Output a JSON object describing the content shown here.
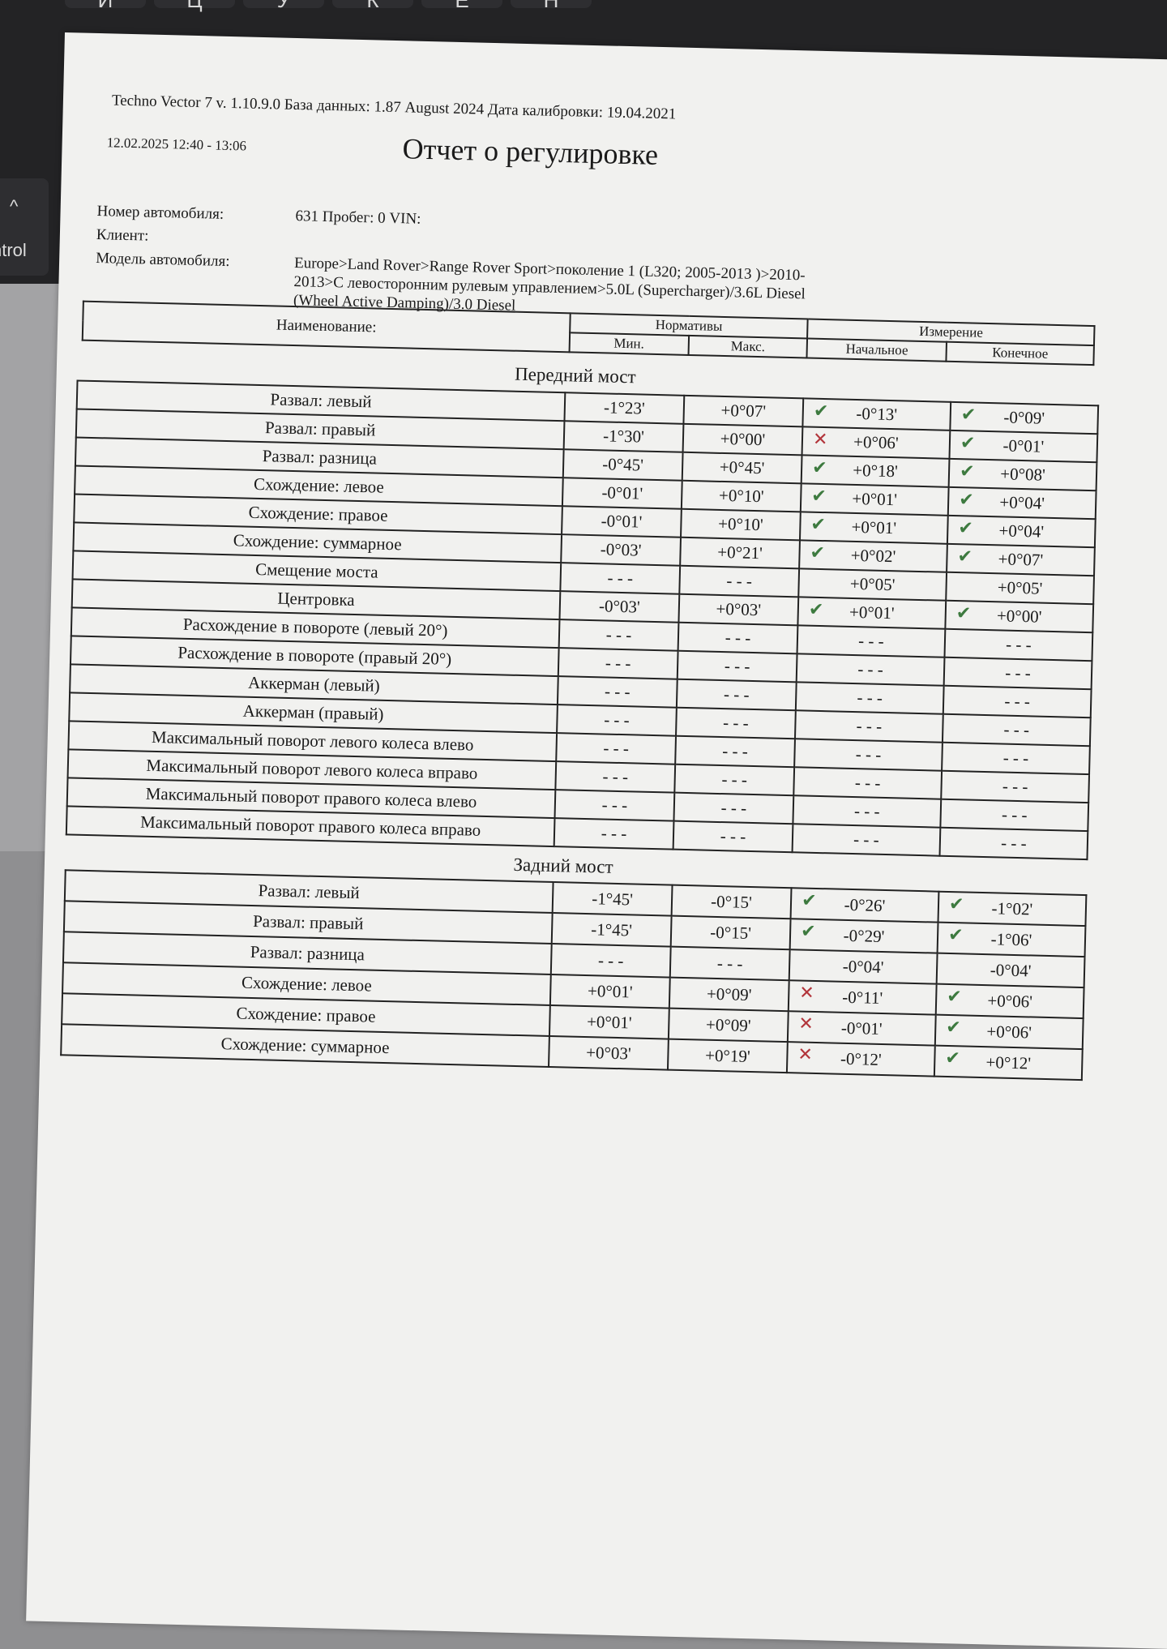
{
  "background": {
    "keyboard_keys": [
      "Й",
      "Ц",
      "У",
      "К",
      "Е",
      "Н"
    ],
    "control_key": "ntrol",
    "control_arrow": "^"
  },
  "report": {
    "header_line": "Techno Vector 7 v. 1.10.9.0 База данных: 1.87 August 2024 Дата калибровки: 19.04.2021",
    "datetime": "12.02.2025 12:40 - 13:06",
    "title": "Отчет о регулировке",
    "vehicle_number_label": "Номер автомобиля:",
    "vehicle_number_value": "631 Пробег:  0 VIN:",
    "client_label": "Клиент:",
    "model_label": "Модель автомобиля:",
    "model_value": "Europe>Land Rover>Range Rover Sport>поколение 1 (L320; 2005-2013 )>2010-2013>С левосторонним рулевым управлением>5.0L (Supercharger)/3.6L Diesel (Wheel Active Damping)/3.0 Diesel"
  },
  "table_header": {
    "name": "Наименование:",
    "norms": "Нормативы",
    "measurement": "Измерение",
    "min": "Мин.",
    "max": "Макс.",
    "initial": "Начальное",
    "final": "Конечное"
  },
  "colors": {
    "ok": "#3d7a3f",
    "bad": "#b2353b"
  },
  "front": {
    "title": "Передний мост",
    "rows": [
      {
        "name": "Развал: левый",
        "min": "-1°23'",
        "max": "+0°07'",
        "initial": "-0°13'",
        "initial_status": "ok",
        "final": "-0°09'",
        "final_status": "ok"
      },
      {
        "name": "Развал: правый",
        "min": "-1°30'",
        "max": "+0°00'",
        "initial": "+0°06'",
        "initial_status": "bad",
        "final": "-0°01'",
        "final_status": "ok"
      },
      {
        "name": "Развал: разница",
        "min": "-0°45'",
        "max": "+0°45'",
        "initial": "+0°18'",
        "initial_status": "ok",
        "final": "+0°08'",
        "final_status": "ok"
      },
      {
        "name": "Схождение: левое",
        "min": "-0°01'",
        "max": "+0°10'",
        "initial": "+0°01'",
        "initial_status": "ok",
        "final": "+0°04'",
        "final_status": "ok"
      },
      {
        "name": "Схождение: правое",
        "min": "-0°01'",
        "max": "+0°10'",
        "initial": "+0°01'",
        "initial_status": "ok",
        "final": "+0°04'",
        "final_status": "ok"
      },
      {
        "name": "Схождение: суммарное",
        "min": "-0°03'",
        "max": "+0°21'",
        "initial": "+0°02'",
        "initial_status": "ok",
        "final": "+0°07'",
        "final_status": "ok"
      },
      {
        "name": "Смещение моста",
        "min": "- - -",
        "max": "- - -",
        "initial": "+0°05'",
        "initial_status": "",
        "final": "+0°05'",
        "final_status": ""
      },
      {
        "name": "Центровка",
        "min": "-0°03'",
        "max": "+0°03'",
        "initial": "+0°01'",
        "initial_status": "ok",
        "final": "+0°00'",
        "final_status": "ok"
      },
      {
        "name": "Расхождение в повороте (левый 20°)",
        "min": "- - -",
        "max": "- - -",
        "initial": "- - -",
        "initial_status": "",
        "final": "- - -",
        "final_status": ""
      },
      {
        "name": "Расхождение в повороте (правый 20°)",
        "min": "- - -",
        "max": "- - -",
        "initial": "- - -",
        "initial_status": "",
        "final": "- - -",
        "final_status": ""
      },
      {
        "name": "Аккерман (левый)",
        "min": "- - -",
        "max": "- - -",
        "initial": "- - -",
        "initial_status": "",
        "final": "- - -",
        "final_status": ""
      },
      {
        "name": "Аккерман (правый)",
        "min": "- - -",
        "max": "- - -",
        "initial": "- - -",
        "initial_status": "",
        "final": "- - -",
        "final_status": ""
      },
      {
        "name": "Максимальный поворот левого колеса влево",
        "min": "- - -",
        "max": "- - -",
        "initial": "- - -",
        "initial_status": "",
        "final": "- - -",
        "final_status": ""
      },
      {
        "name": "Максимальный поворот левого колеса вправо",
        "min": "- - -",
        "max": "- - -",
        "initial": "- - -",
        "initial_status": "",
        "final": "- - -",
        "final_status": ""
      },
      {
        "name": "Максимальный поворот правого колеса влево",
        "min": "- - -",
        "max": "- - -",
        "initial": "- - -",
        "initial_status": "",
        "final": "- - -",
        "final_status": ""
      },
      {
        "name": "Максимальный поворот правого колеса вправо",
        "min": "- - -",
        "max": "- - -",
        "initial": "- - -",
        "initial_status": "",
        "final": "- - -",
        "final_status": ""
      }
    ]
  },
  "rear": {
    "title": "Задний мост",
    "rows": [
      {
        "name": "Развал: левый",
        "min": "-1°45'",
        "max": "-0°15'",
        "initial": "-0°26'",
        "initial_status": "ok",
        "final": "-1°02'",
        "final_status": "ok"
      },
      {
        "name": "Развал: правый",
        "min": "-1°45'",
        "max": "-0°15'",
        "initial": "-0°29'",
        "initial_status": "ok",
        "final": "-1°06'",
        "final_status": "ok"
      },
      {
        "name": "Развал: разница",
        "min": "- - -",
        "max": "- - -",
        "initial": "-0°04'",
        "initial_status": "",
        "final": "-0°04'",
        "final_status": ""
      },
      {
        "name": "Схождение: левое",
        "min": "+0°01'",
        "max": "+0°09'",
        "initial": "-0°11'",
        "initial_status": "bad",
        "final": "+0°06'",
        "final_status": "ok"
      },
      {
        "name": "Схождение: правое",
        "min": "+0°01'",
        "max": "+0°09'",
        "initial": "-0°01'",
        "initial_status": "bad",
        "final": "+0°06'",
        "final_status": "ok"
      },
      {
        "name": "Схождение: суммарное",
        "min": "+0°03'",
        "max": "+0°19'",
        "initial": "-0°12'",
        "initial_status": "bad",
        "final": "+0°12'",
        "final_status": "ok"
      }
    ]
  }
}
